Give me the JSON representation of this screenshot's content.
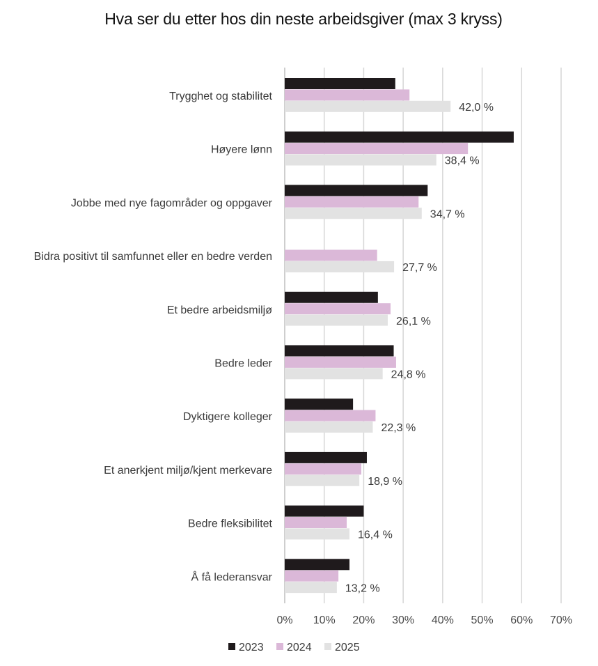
{
  "chart_data": {
    "type": "bar",
    "orientation": "horizontal",
    "title": "Hva ser du etter hos din neste arbeidsgiver (max 3 kryss)",
    "categories": [
      "Trygghet og stabilitet",
      "Høyere lønn",
      "Jobbe med nye fagområder og oppgaver",
      "Bidra positivt til samfunnet eller en bedre verden",
      "Et bedre arbeidsmiljø",
      "Bedre leder",
      "Dyktigere kolleger",
      "Et anerkjent miljø/kjent merkevare",
      "Bedre fleksibilitet",
      "Å få lederansvar"
    ],
    "series": [
      {
        "name": "2023",
        "color": "#1f1a1c",
        "values": [
          28.0,
          58.0,
          36.2,
          null,
          23.6,
          27.6,
          17.3,
          20.8,
          20.0,
          16.4
        ]
      },
      {
        "name": "2024",
        "color": "#dbb8d8",
        "values": [
          31.6,
          46.4,
          33.9,
          23.4,
          26.8,
          28.2,
          23.0,
          19.4,
          15.7,
          13.6
        ]
      },
      {
        "name": "2025",
        "color": "#e2e2e2",
        "values": [
          42.0,
          38.4,
          34.7,
          27.7,
          26.1,
          24.8,
          22.3,
          18.9,
          16.4,
          13.2
        ]
      }
    ],
    "data_labels": [
      "42,0 %",
      "38,4 %",
      "34,7 %",
      "27,7 %",
      "26,1 %",
      "24,8 %",
      "22,3 %",
      "18,9 %",
      "16,4 %",
      "13,2 %"
    ],
    "data_labels_series": "2025",
    "xlim": [
      0,
      70
    ],
    "xticks": [
      0,
      10,
      20,
      30,
      40,
      50,
      60,
      70
    ],
    "xtick_labels": [
      "0%",
      "10%",
      "20%",
      "30%",
      "40%",
      "50%",
      "60%",
      "70%"
    ],
    "grid": true,
    "legend_position": "bottom"
  }
}
